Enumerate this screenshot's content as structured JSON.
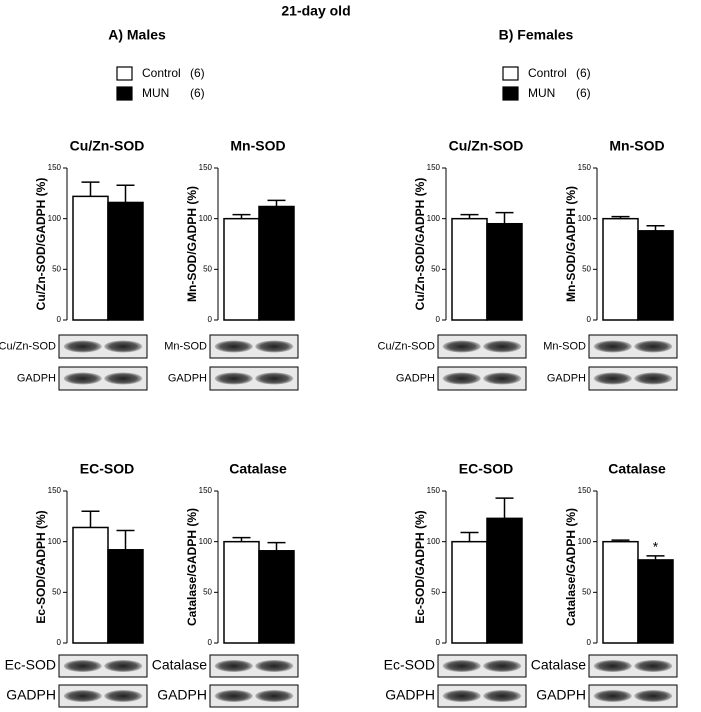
{
  "title": "21-day old",
  "panels": [
    {
      "label": "A) Males",
      "legend": [
        {
          "label": "Control",
          "n": "(6)",
          "color": "#ffffff"
        },
        {
          "label": "MUN",
          "n": "(6)",
          "color": "#000000"
        }
      ]
    },
    {
      "label": "B) Females",
      "legend": [
        {
          "label": "Control",
          "n": "(6)",
          "color": "#ffffff"
        },
        {
          "label": "MUN",
          "n": "(6)",
          "color": "#000000"
        }
      ]
    }
  ],
  "chart_data": [
    {
      "type": "bar",
      "title": "Cu/Zn-SOD",
      "y_label": "Cu/Zn-SOD/GADPH (%)",
      "ylim": [
        0,
        150
      ],
      "yticks": [
        0,
        50,
        100,
        150
      ],
      "series": [
        {
          "color": "#ffffff",
          "values": [
            122
          ],
          "errors": [
            14
          ]
        },
        {
          "color": "#000000",
          "values": [
            116
          ],
          "errors": [
            17
          ]
        }
      ],
      "blots": [
        "Cu/Zn-SOD",
        "GADPH"
      ]
    },
    {
      "type": "bar",
      "title": "Mn-SOD",
      "y_label": "Mn-SOD/GADPH (%)",
      "ylim": [
        0,
        150
      ],
      "yticks": [
        0,
        50,
        100,
        150
      ],
      "series": [
        {
          "color": "#ffffff",
          "values": [
            100
          ],
          "errors": [
            4
          ]
        },
        {
          "color": "#000000",
          "values": [
            112
          ],
          "errors": [
            6
          ]
        }
      ],
      "blots": [
        "Mn-SOD",
        "GADPH"
      ]
    },
    {
      "type": "bar",
      "title": "Cu/Zn-SOD",
      "y_label": "Cu/Zn-SOD/GADPH (%)",
      "ylim": [
        0,
        150
      ],
      "yticks": [
        0,
        50,
        100,
        150
      ],
      "series": [
        {
          "color": "#ffffff",
          "values": [
            100
          ],
          "errors": [
            4
          ]
        },
        {
          "color": "#000000",
          "values": [
            95
          ],
          "errors": [
            11
          ]
        }
      ],
      "blots": [
        "Cu/Zn-SOD",
        "GADPH"
      ]
    },
    {
      "type": "bar",
      "title": "Mn-SOD",
      "y_label": "Mn-SOD/GADPH (%)",
      "ylim": [
        0,
        150
      ],
      "yticks": [
        0,
        50,
        100,
        150
      ],
      "series": [
        {
          "color": "#ffffff",
          "values": [
            100
          ],
          "errors": [
            2
          ]
        },
        {
          "color": "#000000",
          "values": [
            88
          ],
          "errors": [
            5
          ]
        }
      ],
      "blots": [
        "Mn-SOD",
        "GADPH"
      ]
    },
    {
      "type": "bar",
      "title": "EC-SOD",
      "y_label": "Ec-SOD/GADPH (%)",
      "ylim": [
        0,
        150
      ],
      "yticks": [
        0,
        50,
        100,
        150
      ],
      "series": [
        {
          "color": "#ffffff",
          "values": [
            114
          ],
          "errors": [
            16
          ]
        },
        {
          "color": "#000000",
          "values": [
            92
          ],
          "errors": [
            19
          ]
        }
      ],
      "blots": [
        "Ec-SOD",
        "GADPH"
      ]
    },
    {
      "type": "bar",
      "title": "Catalase",
      "y_label": "Catalase/GADPH (%)",
      "ylim": [
        0,
        150
      ],
      "yticks": [
        0,
        50,
        100,
        150
      ],
      "series": [
        {
          "color": "#ffffff",
          "values": [
            100
          ],
          "errors": [
            4
          ]
        },
        {
          "color": "#000000",
          "values": [
            91
          ],
          "errors": [
            8
          ]
        }
      ],
      "blots": [
        "Catalase",
        "GADPH"
      ]
    },
    {
      "type": "bar",
      "title": "EC-SOD",
      "y_label": "Ec-SOD/GADPH (%)",
      "ylim": [
        0,
        150
      ],
      "yticks": [
        0,
        50,
        100,
        150
      ],
      "series": [
        {
          "color": "#ffffff",
          "values": [
            100
          ],
          "errors": [
            9
          ]
        },
        {
          "color": "#000000",
          "values": [
            123
          ],
          "errors": [
            20
          ]
        }
      ],
      "blots": [
        "Ec-SOD",
        "GADPH"
      ]
    },
    {
      "type": "bar",
      "title": "Catalase",
      "y_label": "Catalase/GADPH (%)",
      "ylim": [
        0,
        150
      ],
      "yticks": [
        0,
        50,
        100,
        150
      ],
      "series": [
        {
          "color": "#ffffff",
          "values": [
            100
          ],
          "errors": [
            1.5
          ]
        },
        {
          "color": "#000000",
          "values": [
            82
          ],
          "errors": [
            4
          ],
          "annotations": [
            "*"
          ]
        }
      ],
      "blots": [
        "Catalase",
        "GADPH"
      ]
    }
  ]
}
